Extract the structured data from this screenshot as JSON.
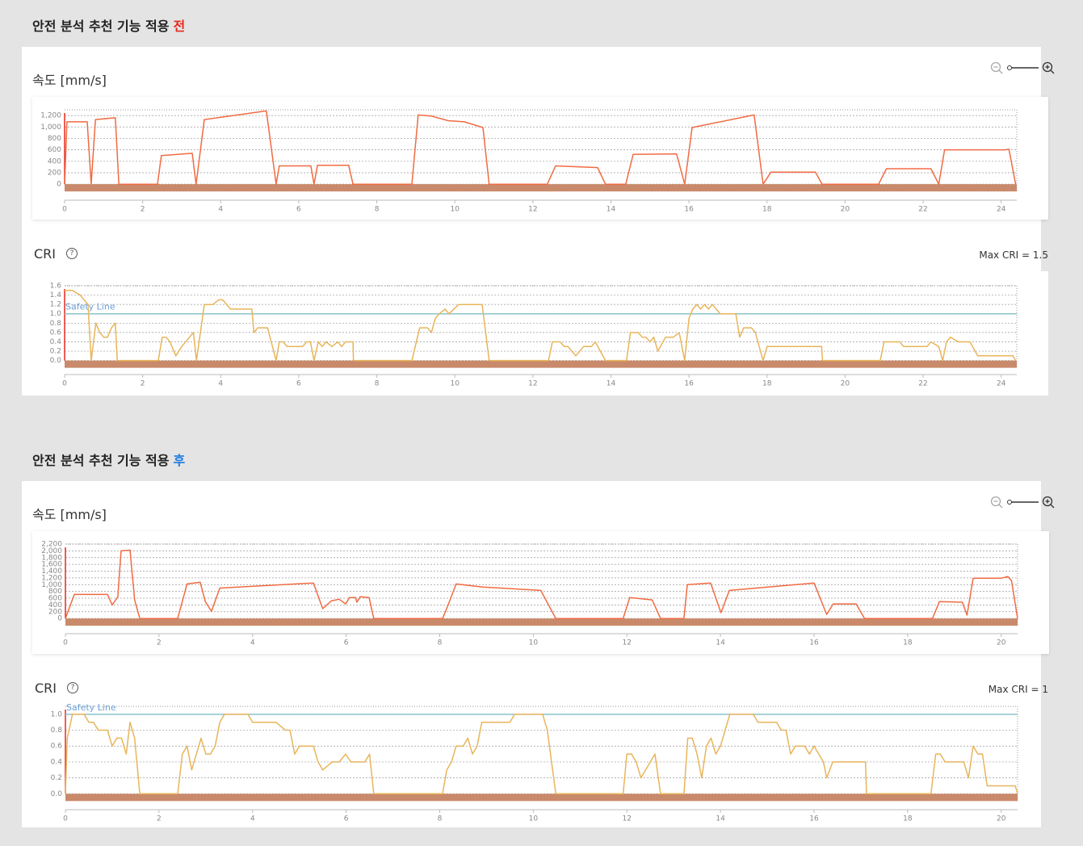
{
  "sections": [
    {
      "heading": "안전 분석 추천 기능 적용",
      "heading_mark": "전",
      "heading_mark_color": "#e8281e"
    },
    {
      "heading": "안전 분석 추천 기능 적용",
      "heading_mark": "후",
      "heading_mark_color": "#1e7be0"
    }
  ],
  "chart_data": [
    {
      "type": "line",
      "title": "속도 [mm/s]",
      "color": "#f06b43",
      "x": [
        0,
        0.06,
        0.58,
        0.68,
        0.79,
        1.3,
        1.39,
        2.38,
        2.48,
        3.27,
        3.37,
        3.58,
        5.17,
        5.42,
        5.5,
        6.31,
        6.39,
        6.48,
        7.28,
        7.39,
        8.9,
        9.06,
        9.4,
        9.83,
        10.24,
        10.72,
        10.88,
        12.37,
        12.58,
        13.66,
        13.86,
        14.38,
        14.57,
        15.68,
        15.89,
        16.08,
        17.67,
        17.9,
        18.1,
        19.24,
        19.41,
        20.86,
        21.06,
        22.2,
        22.4,
        22.55,
        24.1,
        24.2,
        24.37
      ],
      "values": [
        0,
        1090,
        1090,
        0,
        1130,
        1160,
        0,
        0,
        500,
        540,
        0,
        1130,
        1280,
        0,
        320,
        320,
        0,
        330,
        330,
        0,
        0,
        1210,
        1190,
        1110,
        1090,
        990,
        0,
        0,
        320,
        290,
        0,
        0,
        520,
        530,
        0,
        990,
        1210,
        0,
        210,
        210,
        0,
        0,
        270,
        270,
        0,
        600,
        600,
        610,
        0
      ],
      "xlim": [
        0,
        24.4
      ],
      "xticks": [
        0,
        2,
        4,
        6,
        8,
        10,
        12,
        14,
        16,
        18,
        20,
        22,
        24
      ],
      "ylim": [
        -280,
        1300
      ],
      "yticks": [
        0,
        200,
        400,
        600,
        800,
        {
          "value": 1000,
          "label": "1,000"
        },
        {
          "value": 1200,
          "label": "1,200"
        }
      ],
      "grid": true
    },
    {
      "type": "line",
      "title": "CRI",
      "max_label": "Max CRI = 1.5",
      "color": "#e8b55a",
      "safety_line": {
        "value": 1,
        "label": "Safety Line",
        "color": "#8cc3c9",
        "label_color": "#6a9fd8"
      },
      "x": [
        0,
        0.2,
        0.4,
        0.6,
        0.68,
        0.8,
        0.9,
        1.0,
        1.1,
        1.2,
        1.3,
        1.35,
        2.4,
        2.5,
        2.6,
        2.7,
        2.85,
        3.0,
        3.2,
        3.3,
        3.38,
        3.58,
        3.8,
        3.95,
        4.05,
        4.25,
        4.8,
        4.85,
        4.95,
        5.2,
        5.42,
        5.5,
        5.6,
        5.7,
        6.1,
        6.2,
        6.3,
        6.39,
        6.5,
        6.6,
        6.7,
        6.85,
        7.0,
        7.1,
        7.2,
        7.39,
        7.4,
        8.9,
        9.1,
        9.3,
        9.4,
        9.5,
        9.6,
        9.75,
        9.85,
        10.1,
        10.7,
        10.88,
        12.4,
        12.5,
        12.7,
        12.8,
        12.9,
        13.1,
        13.3,
        13.5,
        13.6,
        13.86,
        14.4,
        14.5,
        14.7,
        14.8,
        14.9,
        15.0,
        15.1,
        15.2,
        15.4,
        15.6,
        15.75,
        15.89,
        16.0,
        16.1,
        16.2,
        16.3,
        16.4,
        16.5,
        16.6,
        16.8,
        17.2,
        17.3,
        17.4,
        17.6,
        17.7,
        17.9,
        18.0,
        19.4,
        19.42,
        20.9,
        21.0,
        21.4,
        21.5,
        22.1,
        22.2,
        22.4,
        22.5,
        22.6,
        22.7,
        22.9,
        23.2,
        23.4,
        24.3,
        24.37
      ],
      "values": [
        1.5,
        1.5,
        1.4,
        1.2,
        0,
        0.8,
        0.6,
        0.5,
        0.5,
        0.7,
        0.8,
        0,
        0,
        0.5,
        0.5,
        0.4,
        0.1,
        0.3,
        0.5,
        0.6,
        0,
        1.2,
        1.2,
        1.3,
        1.3,
        1.1,
        1.1,
        0.6,
        0.7,
        0.7,
        0,
        0.4,
        0.4,
        0.3,
        0.3,
        0.4,
        0.4,
        0,
        0.4,
        0.3,
        0.4,
        0.3,
        0.4,
        0.3,
        0.4,
        0.4,
        0,
        0,
        0.7,
        0.7,
        0.6,
        0.9,
        1.0,
        1.1,
        1.0,
        1.2,
        1.2,
        0,
        0,
        0.4,
        0.4,
        0.3,
        0.3,
        0.1,
        0.3,
        0.3,
        0.4,
        0,
        0,
        0.6,
        0.6,
        0.5,
        0.5,
        0.4,
        0.5,
        0.2,
        0.5,
        0.5,
        0.6,
        0,
        0.9,
        1.1,
        1.2,
        1.1,
        1.2,
        1.1,
        1.2,
        1.0,
        1.0,
        0.5,
        0.7,
        0.7,
        0.6,
        0,
        0.3,
        0.3,
        0,
        0,
        0.4,
        0.4,
        0.3,
        0.3,
        0.4,
        0.3,
        0,
        0.4,
        0.5,
        0.4,
        0.4,
        0.1,
        0.1,
        0
      ],
      "xlim": [
        0,
        24.4
      ],
      "xticks": [
        0,
        2,
        4,
        6,
        8,
        10,
        12,
        14,
        16,
        18,
        20,
        22,
        24
      ],
      "ylim": [
        -0.3,
        1.6
      ],
      "yticks": [
        {
          "value": 0,
          "label": "0.0"
        },
        0.2,
        0.4,
        0.6,
        0.8,
        {
          "value": 1,
          "label": "1.0"
        },
        1.2,
        1.4,
        1.6
      ],
      "grid": true
    },
    {
      "type": "line",
      "title": "속도 [mm/s]",
      "color": "#f06b43",
      "x": [
        0,
        0.19,
        0.9,
        1.0,
        1.12,
        1.19,
        1.38,
        1.48,
        1.59,
        2.4,
        2.6,
        2.88,
        2.99,
        3.12,
        3.3,
        5.3,
        5.5,
        5.68,
        5.85,
        5.99,
        6.07,
        6.2,
        6.23,
        6.3,
        6.49,
        6.59,
        8.06,
        8.18,
        8.35,
        8.92,
        10.16,
        10.48,
        11.92,
        12.06,
        12.54,
        12.72,
        13.22,
        13.29,
        13.79,
        14.01,
        14.19,
        16.0,
        16.27,
        16.41,
        16.9,
        17.08,
        18.53,
        18.68,
        19.17,
        19.27,
        19.4,
        20.0,
        20.14,
        20.22,
        20.35
      ],
      "values": [
        0,
        710,
        710,
        400,
        640,
        2000,
        2020,
        550,
        0,
        0,
        1020,
        1070,
        500,
        210,
        900,
        1050,
        290,
        520,
        570,
        430,
        620,
        620,
        480,
        640,
        620,
        0,
        0,
        400,
        1020,
        930,
        830,
        0,
        0,
        620,
        550,
        0,
        0,
        1000,
        1050,
        170,
        830,
        1050,
        120,
        430,
        430,
        0,
        0,
        500,
        480,
        100,
        1190,
        1190,
        1240,
        1120,
        0
      ],
      "xlim": [
        0,
        20.35
      ],
      "xticks": [
        0,
        2,
        4,
        6,
        8,
        10,
        12,
        14,
        16,
        18,
        20
      ],
      "ylim": [
        -450,
        2200
      ],
      "yticks": [
        0,
        200,
        400,
        600,
        800,
        {
          "value": 1000,
          "label": "1,000"
        },
        {
          "value": 1200,
          "label": "1,200"
        },
        {
          "value": 1400,
          "label": "1,400"
        },
        {
          "value": 1600,
          "label": "1,600"
        },
        {
          "value": 1800,
          "label": "1,800"
        },
        {
          "value": 2000,
          "label": "2,000"
        },
        {
          "value": 2200,
          "label": "2,200"
        }
      ],
      "grid": true
    },
    {
      "type": "line",
      "title": "CRI",
      "max_label": "Max CRI = 1",
      "color": "#e8b55a",
      "safety_line": {
        "value": 1,
        "label": "Safety Line",
        "color": "#8cc3c9",
        "label_color": "#6a9fd8"
      },
      "x": [
        0,
        0.04,
        0.15,
        0.4,
        0.5,
        0.6,
        0.7,
        0.9,
        1.0,
        1.1,
        1.2,
        1.3,
        1.38,
        1.48,
        1.59,
        2.4,
        2.5,
        2.6,
        2.7,
        2.8,
        2.9,
        3.0,
        3.1,
        3.2,
        3.3,
        3.4,
        3.9,
        4.0,
        4.5,
        4.7,
        4.8,
        4.9,
        5.0,
        5.3,
        5.4,
        5.5,
        5.7,
        5.85,
        5.99,
        6.1,
        6.4,
        6.5,
        6.59,
        8.06,
        8.15,
        8.25,
        8.35,
        8.5,
        8.6,
        8.7,
        8.8,
        8.9,
        9.5,
        9.6,
        10.2,
        10.3,
        10.48,
        11.92,
        12.0,
        12.1,
        12.2,
        12.3,
        12.5,
        12.6,
        12.72,
        13.22,
        13.3,
        13.4,
        13.5,
        13.6,
        13.7,
        13.8,
        13.9,
        14.0,
        14.1,
        14.2,
        14.7,
        14.8,
        15.2,
        15.3,
        15.4,
        15.5,
        15.6,
        15.7,
        15.8,
        15.9,
        16.0,
        16.1,
        16.2,
        16.27,
        16.4,
        17.1,
        17.12,
        18.5,
        18.6,
        18.7,
        18.8,
        19.2,
        19.3,
        19.4,
        19.5,
        19.6,
        19.7,
        20.3,
        20.35
      ],
      "values": [
        0,
        0.7,
        1.0,
        1.0,
        0.9,
        0.9,
        0.8,
        0.8,
        0.6,
        0.7,
        0.7,
        0.5,
        0.9,
        0.7,
        0,
        0,
        0.5,
        0.6,
        0.3,
        0.5,
        0.7,
        0.5,
        0.5,
        0.6,
        0.9,
        1.0,
        1.0,
        0.9,
        0.9,
        0.8,
        0.8,
        0.5,
        0.6,
        0.6,
        0.4,
        0.3,
        0.4,
        0.4,
        0.5,
        0.4,
        0.4,
        0.5,
        0,
        0,
        0.3,
        0.4,
        0.6,
        0.6,
        0.7,
        0.5,
        0.6,
        0.9,
        0.9,
        1.0,
        1.0,
        0.8,
        0,
        0,
        0.5,
        0.5,
        0.4,
        0.2,
        0.4,
        0.5,
        0,
        0,
        0.7,
        0.7,
        0.5,
        0.2,
        0.6,
        0.7,
        0.5,
        0.6,
        0.8,
        1.0,
        1.0,
        0.9,
        0.9,
        0.8,
        0.8,
        0.5,
        0.6,
        0.6,
        0.6,
        0.5,
        0.6,
        0.5,
        0.4,
        0.2,
        0.4,
        0.4,
        0,
        0,
        0.5,
        0.5,
        0.4,
        0.4,
        0.2,
        0.6,
        0.5,
        0.5,
        0.1,
        0.1,
        0
      ],
      "xlim": [
        0,
        20.35
      ],
      "xticks": [
        0,
        2,
        4,
        6,
        8,
        10,
        12,
        14,
        16,
        18,
        20
      ],
      "ylim": [
        -0.2,
        1.1
      ],
      "yticks": [
        {
          "value": 0,
          "label": "0.0"
        },
        0.2,
        0.4,
        0.6,
        0.8,
        {
          "value": 1,
          "label": "1.0"
        }
      ],
      "grid": true
    }
  ]
}
